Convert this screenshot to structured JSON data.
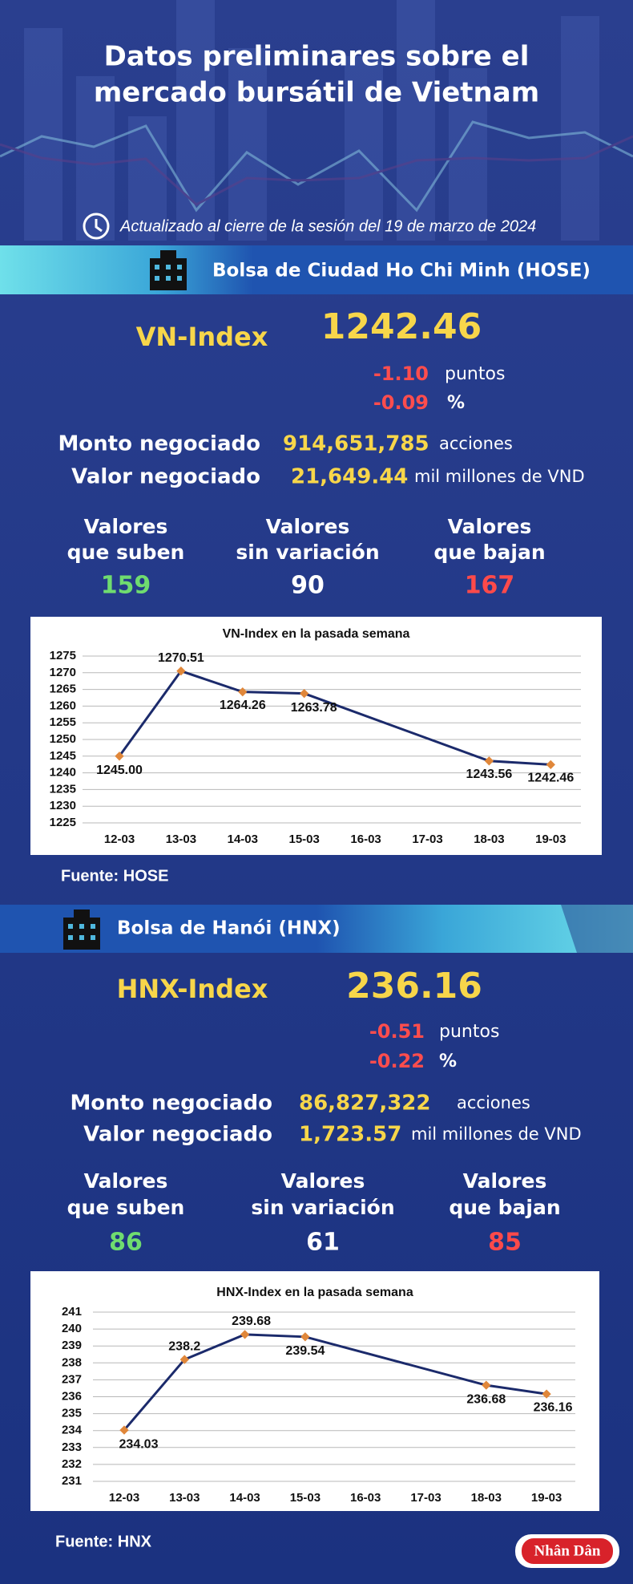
{
  "header": {
    "title_lines": [
      "Datos preliminares sobre el",
      "mercado bursátil de Vietnam"
    ],
    "updated": "Actualizado al cierre de la sesión del 19 de marzo de 2024"
  },
  "markets": [
    {
      "exchange": "Bolsa de Ciudad Ho Chi Minh (HOSE)",
      "index_name": "VN-Index",
      "index_value": "1242.46",
      "change_points": "-1.10",
      "points_unit": "puntos",
      "change_percent": "-0.09",
      "percent_unit": "%",
      "volume_label": "Monto negociado",
      "volume": "914,651,785",
      "volume_unit": "acciones",
      "value_label": "Valor negociado",
      "value": "21,649.44",
      "value_unit": "mil millones de VND",
      "stats": [
        {
          "label": [
            "Valores",
            "que suben"
          ],
          "count": "159"
        },
        {
          "label": [
            "Valores",
            "sin variación"
          ],
          "count": "90"
        },
        {
          "label": [
            "Valores",
            "que bajan"
          ],
          "count": "167"
        }
      ],
      "source": "Fuente: HOSE"
    },
    {
      "exchange": "Bolsa de Hanói (HNX)",
      "index_name": "HNX-Index",
      "index_value": "236.16",
      "change_points": "-0.51",
      "points_unit": "puntos",
      "change_percent": "-0.22",
      "percent_unit": "%",
      "volume_label": "Monto negociado",
      "volume": "86,827,322",
      "volume_unit": "acciones",
      "value_label": "Valor negociado",
      "value": "1,723.57",
      "value_unit": "mil millones de VND",
      "stats": [
        {
          "label": [
            "Valores",
            "que suben"
          ],
          "count": "86"
        },
        {
          "label": [
            "Valores",
            "sin variación"
          ],
          "count": "61"
        },
        {
          "label": [
            "Valores",
            "que bajan"
          ],
          "count": "85"
        }
      ],
      "source": "Fuente:  HNX"
    }
  ],
  "footer": {
    "logo": "Nhân Dân"
  },
  "chart_data": [
    {
      "type": "line",
      "title": "VN-Index en la pasada semana",
      "categories": [
        "12-03",
        "13-03",
        "14-03",
        "15-03",
        "16-03",
        "17-03",
        "18-03",
        "19-03"
      ],
      "series": [
        {
          "x": [
            "12-03",
            "13-03",
            "14-03",
            "15-03",
            "18-03",
            "19-03"
          ],
          "values": [
            1245.0,
            1270.51,
            1264.26,
            1263.78,
            1243.56,
            1242.46
          ],
          "value_labels": [
            "1245.00",
            "1270.51",
            "1264.26",
            "1263.78",
            "1243.56",
            "1242.46"
          ],
          "color": "#1b2a6b",
          "marker_color": "#e0873a"
        }
      ],
      "ylim": [
        1225,
        1275
      ],
      "yticks": [
        1225,
        1230,
        1235,
        1240,
        1245,
        1250,
        1255,
        1260,
        1265,
        1270,
        1275
      ],
      "grid": true
    },
    {
      "type": "line",
      "title": "HNX-Index en la pasada semana",
      "categories": [
        "12-03",
        "13-03",
        "14-03",
        "15-03",
        "16-03",
        "17-03",
        "18-03",
        "19-03"
      ],
      "series": [
        {
          "x": [
            "12-03",
            "13-03",
            "14-03",
            "15-03",
            "18-03",
            "19-03"
          ],
          "values": [
            234.03,
            238.2,
            239.68,
            239.54,
            236.68,
            236.16
          ],
          "color": "#1b2a6b",
          "marker_color": "#e0873a"
        }
      ],
      "ylim": [
        231,
        241
      ],
      "yticks": [
        231,
        232,
        233,
        234,
        235,
        236,
        237,
        238,
        239,
        240,
        241
      ],
      "grid": true
    }
  ]
}
